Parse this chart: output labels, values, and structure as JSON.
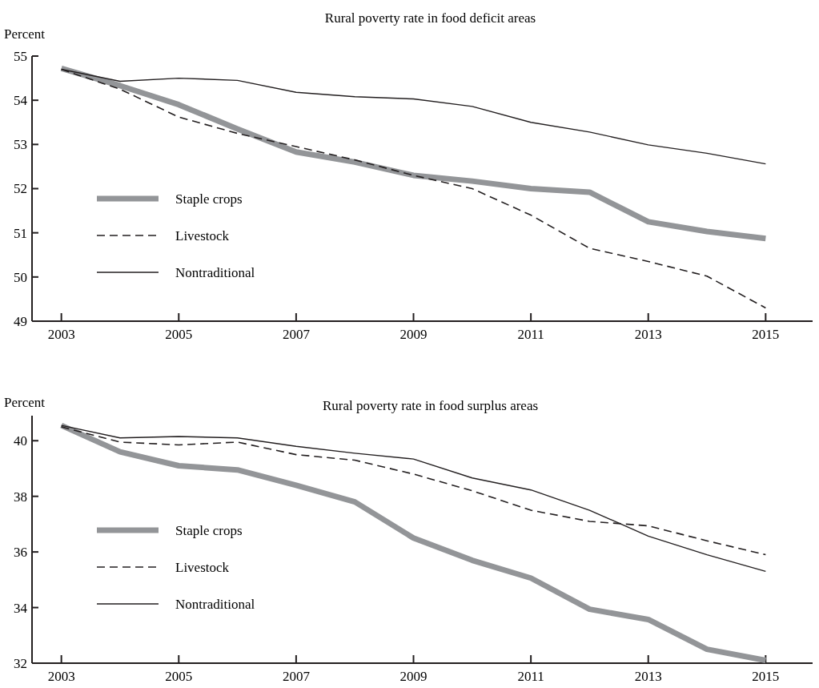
{
  "chart_data": [
    {
      "type": "line",
      "title": "Rural poverty rate in food deficit areas",
      "ylabel": "Percent",
      "x": [
        2003,
        2004,
        2005,
        2006,
        2007,
        2008,
        2009,
        2010,
        2011,
        2012,
        2013,
        2014,
        2015
      ],
      "xlim": [
        2002.5,
        2015.8
      ],
      "xticks": [
        2003,
        2005,
        2007,
        2009,
        2011,
        2013,
        2015
      ],
      "ylim": [
        49,
        55
      ],
      "yticks": [
        49,
        50,
        51,
        52,
        53,
        54,
        55
      ],
      "grid": false,
      "legend": "left",
      "marker": "none",
      "series": [
        {
          "name": "Staple crops",
          "color": "#939598",
          "line_style": "solid",
          "values": [
            54.72,
            54.33,
            53.9,
            53.35,
            52.83,
            52.6,
            52.3,
            52.17,
            52.0,
            51.92,
            51.25,
            51.03,
            50.87
          ]
        },
        {
          "name": "Livestock",
          "color": "#231f20",
          "line_style": "dashed",
          "values": [
            54.7,
            54.25,
            53.62,
            53.25,
            52.95,
            52.65,
            52.3,
            52.0,
            51.4,
            50.65,
            50.35,
            50.02,
            49.3
          ]
        },
        {
          "name": "Nontraditional",
          "color": "#231f20",
          "line_style": "solid",
          "values": [
            54.7,
            54.43,
            54.5,
            54.45,
            54.18,
            54.08,
            54.03,
            53.86,
            53.5,
            53.28,
            52.99,
            52.8,
            52.56
          ]
        }
      ]
    },
    {
      "type": "line",
      "title": "Rural poverty rate in food surplus areas",
      "ylabel": "Percent",
      "x": [
        2003,
        2004,
        2005,
        2006,
        2007,
        2008,
        2009,
        2010,
        2011,
        2012,
        2013,
        2014,
        2015
      ],
      "xlim": [
        2002.5,
        2015.8
      ],
      "xticks": [
        2003,
        2005,
        2007,
        2009,
        2011,
        2013,
        2015
      ],
      "ylim": [
        32,
        40.9
      ],
      "yticks": [
        32,
        34,
        36,
        38,
        40
      ],
      "grid": false,
      "legend": "left",
      "marker": "none",
      "series": [
        {
          "name": "Staple crops",
          "color": "#939598",
          "line_style": "solid",
          "values": [
            40.55,
            39.6,
            39.1,
            38.95,
            38.4,
            37.8,
            36.5,
            35.7,
            35.06,
            33.94,
            33.57,
            32.5,
            32.1
          ]
        },
        {
          "name": "Livestock",
          "color": "#231f20",
          "line_style": "dashed",
          "values": [
            40.5,
            39.95,
            39.85,
            39.95,
            39.5,
            39.3,
            38.8,
            38.2,
            37.5,
            37.1,
            36.94,
            36.4,
            35.9
          ]
        },
        {
          "name": "Nontraditional",
          "color": "#231f20",
          "line_style": "solid",
          "values": [
            40.55,
            40.1,
            40.15,
            40.1,
            39.8,
            39.55,
            39.34,
            38.66,
            38.23,
            37.5,
            36.57,
            35.9,
            35.3
          ]
        }
      ]
    }
  ]
}
